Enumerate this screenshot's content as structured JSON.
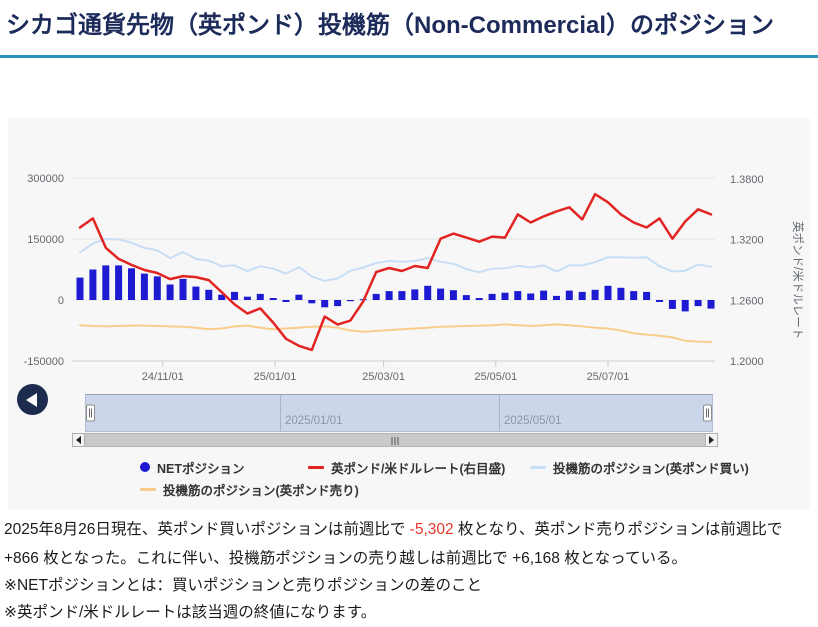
{
  "page": {
    "title": "シカゴ通貨先物（英ポンド）投機筋（Non-Commercial）のポジション"
  },
  "chart_data": {
    "type": "bar+line",
    "x_dates": [
      "2024-09-17",
      "2024-09-24",
      "2024-10-01",
      "2024-10-08",
      "2024-10-15",
      "2024-10-22",
      "2024-10-29",
      "2024-11-05",
      "2024-11-12",
      "2024-11-19",
      "2024-11-26",
      "2024-12-03",
      "2024-12-10",
      "2024-12-17",
      "2024-12-24",
      "2024-12-31",
      "2025-01-07",
      "2025-01-14",
      "2025-01-21",
      "2025-01-28",
      "2025-02-04",
      "2025-02-11",
      "2025-02-18",
      "2025-02-25",
      "2025-03-04",
      "2025-03-11",
      "2025-03-18",
      "2025-03-25",
      "2025-04-01",
      "2025-04-08",
      "2025-04-15",
      "2025-04-22",
      "2025-04-29",
      "2025-05-06",
      "2025-05-13",
      "2025-05-20",
      "2025-05-27",
      "2025-06-03",
      "2025-06-10",
      "2025-06-17",
      "2025-06-24",
      "2025-07-01",
      "2025-07-08",
      "2025-07-15",
      "2025-07-22",
      "2025-07-29",
      "2025-08-05",
      "2025-08-12",
      "2025-08-19",
      "2025-08-26"
    ],
    "xtick_labels": [
      "24/11/01",
      "25/01/01",
      "25/03/01",
      "25/05/01",
      "25/07/01"
    ],
    "left_axis_ticks": [
      "300000",
      "150000",
      "0",
      "-150000"
    ],
    "right_axis_ticks": [
      "1.3800",
      "1.3200",
      "1.2600",
      "1.2000"
    ],
    "right_axis_label": "英ポンド/米ドルレート",
    "left_range": [
      -150000,
      300000
    ],
    "right_range": [
      1.2,
      1.38
    ],
    "series": [
      {
        "name": "NETポジション",
        "type": "bar",
        "axis": "left",
        "color": "#1d1ad2",
        "values": [
          55000,
          75000,
          85000,
          85000,
          78000,
          65000,
          58000,
          38000,
          52000,
          33000,
          25000,
          13000,
          20000,
          8000,
          15000,
          5000,
          -5000,
          13000,
          -8000,
          -18000,
          -15000,
          -3000,
          2000,
          15000,
          22000,
          22000,
          26000,
          35000,
          28000,
          24000,
          12000,
          5000,
          15000,
          18000,
          22000,
          16000,
          23000,
          10000,
          23000,
          20000,
          25000,
          35000,
          30000,
          22000,
          20000,
          -5000,
          -22000,
          -28000,
          -15000,
          -21168
        ]
      },
      {
        "name": "英ポンド/米ドルレート(右目盛)",
        "type": "line",
        "axis": "right",
        "color": "#e12421",
        "values": [
          1.332,
          1.341,
          1.312,
          1.301,
          1.295,
          1.29,
          1.287,
          1.281,
          1.284,
          1.283,
          1.28,
          1.268,
          1.256,
          1.247,
          1.252,
          1.238,
          1.222,
          1.215,
          1.211,
          1.244,
          1.236,
          1.24,
          1.259,
          1.288,
          1.292,
          1.289,
          1.294,
          1.292,
          1.321,
          1.326,
          1.322,
          1.318,
          1.323,
          1.322,
          1.345,
          1.337,
          1.343,
          1.348,
          1.352,
          1.34,
          1.365,
          1.357,
          1.345,
          1.337,
          1.332,
          1.341,
          1.321,
          1.338,
          1.35,
          1.345
        ]
      },
      {
        "name": "投機筋のポジション(英ポンド買い)",
        "type": "line",
        "axis": "left",
        "color": "#c8def4",
        "values": [
          117000,
          139000,
          150000,
          149000,
          141000,
          128000,
          122000,
          103000,
          118000,
          101000,
          97000,
          83000,
          85000,
          71000,
          83000,
          77000,
          65000,
          81000,
          58000,
          47000,
          53000,
          72000,
          80000,
          91000,
          96000,
          94000,
          96000,
          103000,
          94000,
          89000,
          76000,
          68000,
          77000,
          78000,
          84000,
          80000,
          85000,
          70000,
          85000,
          85000,
          93000,
          105000,
          105000,
          104000,
          105000,
          83000,
          70000,
          72000,
          87300,
          81998
        ]
      },
      {
        "name": "投機筋のポジション(英ポンド売り)",
        "type": "line",
        "axis": "left",
        "color": "#f8cd8b",
        "values": [
          -62000,
          -64000,
          -65000,
          -64000,
          -63000,
          -63000,
          -64000,
          -65000,
          -66000,
          -68000,
          -72000,
          -70000,
          -65000,
          -63000,
          -68000,
          -72000,
          -70000,
          -68000,
          -66000,
          -65000,
          -68000,
          -75000,
          -78000,
          -76000,
          -74000,
          -72000,
          -70000,
          -68000,
          -66000,
          -65000,
          -64000,
          -63000,
          -62000,
          -60000,
          -62000,
          -64000,
          -62000,
          -60000,
          -62000,
          -65000,
          -68000,
          -70000,
          -75000,
          -82000,
          -85000,
          -88000,
          -92000,
          -100000,
          -102300,
          -103166
        ]
      }
    ],
    "legend_position": "bottom"
  },
  "navigator": {
    "zone_labels": [
      "2025/01/01",
      "2025/05/01"
    ]
  },
  "summary": {
    "p1_a": "2025年8月26日現在、英ポンド買いポジションは前週比で ",
    "p1_red": "-5,302",
    "p1_b": " 枚となり、英ポンド売りポジションは前週比で +866 枚となった。これに伴い、投機筋ポジションの売り越しは前週比で +6,168 枚となっている。",
    "note1": "※NETポジションとは：買いポジションと売りポジションの差のこと",
    "note2": "※英ポンド/米ドルレートは該当週の終値になります。"
  },
  "colors": {
    "title": "#1c2b5a",
    "rule": "#2a93b8",
    "negative_number": "#e8392b",
    "navigator_fill": "#ccd6ea"
  }
}
